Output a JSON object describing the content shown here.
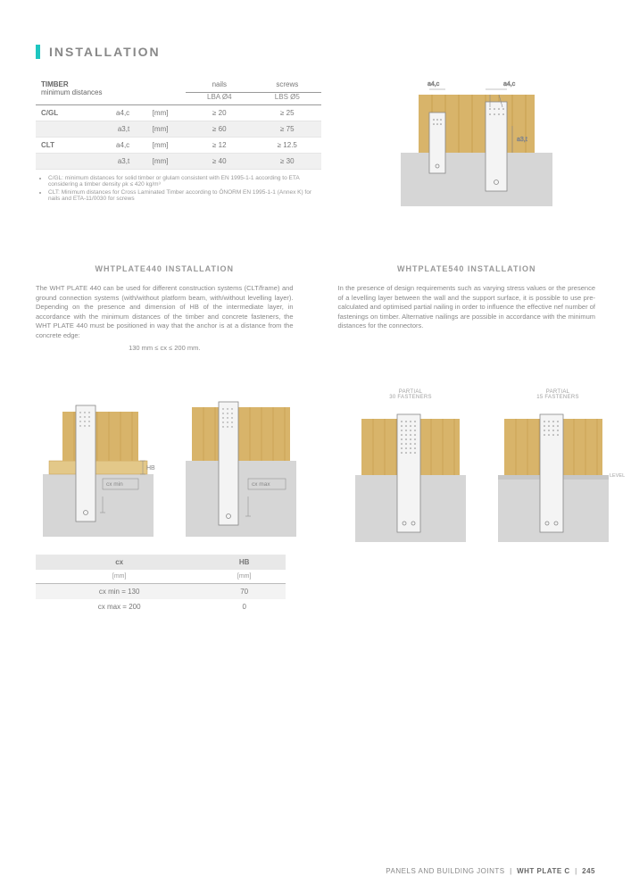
{
  "header": {
    "title": "INSTALLATION"
  },
  "timber_table": {
    "title1": "TIMBER",
    "title2": "minimum distances",
    "col_nails": "nails",
    "col_screws": "screws",
    "sub_nails": "LBA Ø4",
    "sub_screws": "LBS Ø5",
    "rows": [
      {
        "group": "C/GL",
        "sym": "a4,c",
        "unit": "[mm]",
        "nails": "≥ 20",
        "screws": "≥ 25",
        "alt": false
      },
      {
        "group": "",
        "sym": "a3,t",
        "unit": "[mm]",
        "nails": "≥ 60",
        "screws": "≥ 75",
        "alt": true
      },
      {
        "group": "CLT",
        "sym": "a4,c",
        "unit": "[mm]",
        "nails": "≥ 12",
        "screws": "≥ 12.5",
        "alt": false
      },
      {
        "group": "",
        "sym": "a3,t",
        "unit": "[mm]",
        "nails": "≥ 40",
        "screws": "≥ 30",
        "alt": true
      }
    ],
    "notes": [
      "C/GL: minimum distances for solid timber or glulam consistent with EN 1995-1-1 according to ETA considering a timber density ρk ≤ 420 kg/m³",
      "CLT: Minimum distances for Cross Laminated Timber according to ÖNORM EN 1995-1-1 (Annex K) for nails and ETA-11/0030 for screws"
    ]
  },
  "top_diagram": {
    "colors": {
      "wood": "#d8b46a",
      "concrete": "#d6d6d6",
      "plate": "#f4f4f4",
      "line": "#888"
    },
    "labels": {
      "a4c_left": "a4,c",
      "a4c_right": "a4,c",
      "a3t": "a3,t"
    }
  },
  "mid_left": {
    "title": "WHTPLATE440 INSTALLATION",
    "text": "The WHT PLATE 440 can be used for different construction systems (CLT/frame) and ground connection systems (with/without platform beam, with/without levelling layer). Depending on the presence and dimension of HB of the intermediate layer, in accordance with the minimum distances of the timber and concrete fasteners, the WHT PLATE 440 must be positioned in way that the anchor is at a distance from the concrete edge:",
    "formula": "130 mm ≤ cx ≤ 200 mm."
  },
  "mid_right": {
    "title": "WHTPLATE540 INSTALLATION",
    "text": "In the presence of design requirements such as varying stress values or the presence of a levelling layer between the wall and the support surface, it is possible to use pre-calculated and optimised partial nailing in order to influence the effective nef number of fastenings on timber. Alternative nailings are possible in accordance with the minimum distances for the connectors."
  },
  "diag_left": {
    "labels": {
      "hb": "HB",
      "cxmin": "cx min",
      "cxmax": "cx max"
    },
    "colors": {
      "wood": "#d8b46a",
      "wood2": "#e3c889",
      "concrete": "#d6d6d6",
      "plate": "#f4f4f4",
      "line": "#888"
    }
  },
  "diag_right": {
    "label1a": "PARTIAL",
    "label1b": "30 FASTENERS",
    "label2a": "PARTIAL",
    "label2b": "15 FASTENERS",
    "label_level": "LEVELLING LAYER",
    "colors": {
      "wood": "#d8b46a",
      "concrete": "#d6d6d6",
      "plate": "#f4f4f4",
      "level": "#c7c7c7",
      "line": "#888"
    }
  },
  "cx_table": {
    "h1": "cx",
    "h2": "HB",
    "u1": "[mm]",
    "u2": "[mm]",
    "r1a": "cx min = 130",
    "r1b": "70",
    "r2a": "cx max = 200",
    "r2b": "0"
  },
  "footer": {
    "left": "PANELS AND BUILDING JOINTS",
    "mid": "WHT PLATE C",
    "page": "245"
  }
}
